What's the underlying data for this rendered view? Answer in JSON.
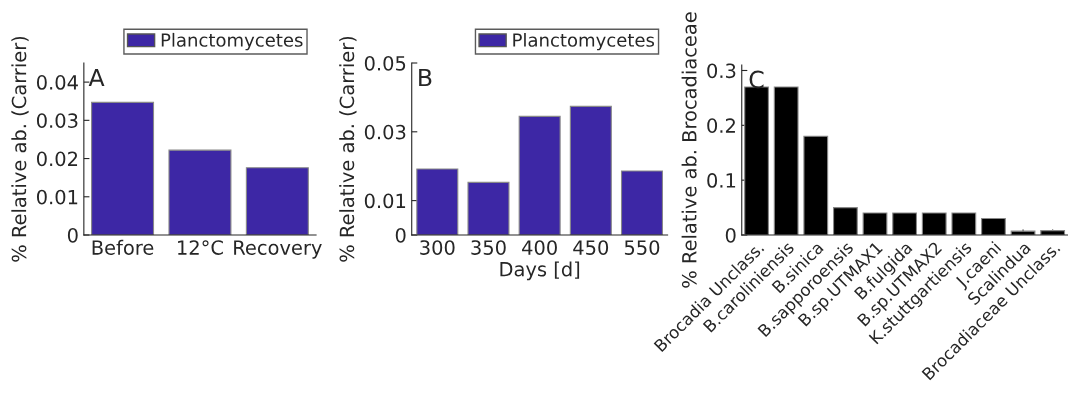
{
  "chart_data": [
    {
      "type": "bar",
      "categories": [
        "Before",
        "12°C",
        "Recovery"
      ],
      "ylabel": "% Relative ab. (Carrier)",
      "annotations": [
        "A"
      ],
      "series": [
        {
          "name": "Planctomycetes",
          "color": "#3d27a5",
          "values": [
            0.0347,
            0.0222,
            0.0176
          ]
        }
      ],
      "ylim": [
        0,
        0.045
      ],
      "yticks": [
        0,
        0.01,
        0.02,
        0.03,
        0.04
      ],
      "legend": "top right",
      "grid": false
    },
    {
      "type": "bar",
      "categories": [
        "300",
        "350",
        "400",
        "450",
        "550"
      ],
      "xlabel": "Days [d]",
      "ylabel": "% Relative ab. (Carrier)",
      "annotations": [
        "B"
      ],
      "series": [
        {
          "name": "Planctomycetes",
          "color": "#3d27a5",
          "values": [
            0.0192,
            0.0153,
            0.0345,
            0.0374,
            0.0186
          ]
        }
      ],
      "ylim": [
        0,
        0.05
      ],
      "yticks": [
        0,
        0.01,
        0.03,
        0.05
      ],
      "legend": "top right",
      "grid": false
    },
    {
      "type": "bar",
      "categories": [
        "Brocadia Unclass.",
        "B.caroliniensis",
        "B.sinica",
        "B.sapporoensis",
        "B.sp.UTMAX1",
        "B.fulgida",
        "B.sp.UTMAX2",
        "K.stuttgartiensis",
        "J.caeni",
        "Scalindua",
        "Brocadiaceae Unclass."
      ],
      "ylabel": "% Relative ab. Brocadiaceae",
      "annotations": [
        "C"
      ],
      "series": [
        {
          "color": "#000000",
          "values": [
            0.27,
            0.27,
            0.18,
            0.05,
            0.04,
            0.04,
            0.04,
            0.04,
            0.03,
            0.007,
            0.008
          ]
        }
      ],
      "ylim": [
        0,
        0.31
      ],
      "yticks": [
        0,
        0.1,
        0.2,
        0.3
      ],
      "grid": false
    }
  ]
}
